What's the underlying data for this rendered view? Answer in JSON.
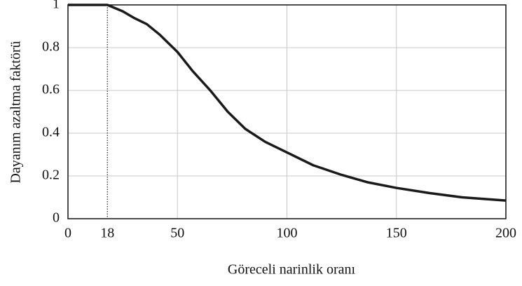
{
  "chart_data": {
    "type": "line",
    "x_label": "Göreceli narinlik oranı",
    "y_label": "Dayanım azaltma faktörü",
    "x": [
      0,
      18,
      25,
      30,
      36,
      42,
      50,
      57,
      65,
      73,
      81,
      90,
      100,
      112,
      125,
      137,
      150,
      165,
      180,
      200
    ],
    "series": [
      {
        "color": "#1a1a1a",
        "values": [
          1,
          1,
          0.97,
          0.94,
          0.91,
          0.86,
          0.78,
          0.69,
          0.6,
          0.5,
          0.42,
          0.36,
          0.31,
          0.25,
          0.205,
          0.17,
          0.144,
          0.12,
          0.1,
          0.085
        ]
      }
    ],
    "xlim": [
      0,
      200
    ],
    "ylim": [
      0,
      1
    ],
    "xticks": [
      0,
      18,
      50,
      100,
      150,
      200
    ],
    "yticks": [
      0,
      0.2,
      0.4,
      0.6,
      0.8,
      1
    ],
    "reference_line_x": 18,
    "grid": true
  }
}
